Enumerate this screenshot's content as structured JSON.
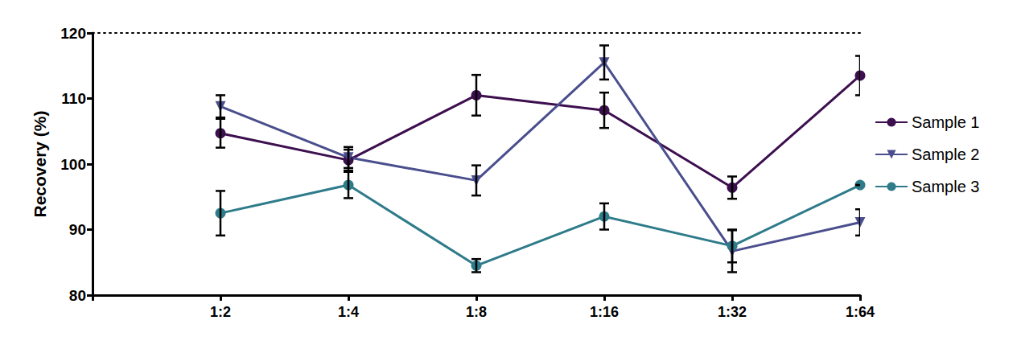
{
  "chart_data": {
    "type": "line",
    "y_label": "Recovery (%)",
    "categories": [
      null,
      "1:2",
      "1:4",
      "1:8",
      "1:16",
      "1:32",
      "1:64"
    ],
    "ylim": [
      80,
      120
    ],
    "yticks": [
      80,
      90,
      100,
      110,
      120
    ],
    "grid": false,
    "legend": "right",
    "series": [
      {
        "name": "Sample 1",
        "color": "#3d0f4f",
        "marker": "circle",
        "values": [
          null,
          104.7,
          100.6,
          110.5,
          108.2,
          96.4,
          113.5
        ],
        "errors": [
          null,
          2.2,
          1.6,
          3.1,
          2.7,
          1.7,
          3.0
        ]
      },
      {
        "name": "Sample 2",
        "color": "#4a4e8d",
        "marker": "triangle-down",
        "values": [
          null,
          108.8,
          101.0,
          97.5,
          115.5,
          86.7,
          91.1
        ],
        "errors": [
          null,
          1.7,
          1.6,
          2.3,
          2.6,
          3.2,
          2.0
        ]
      },
      {
        "name": "Sample 3",
        "color": "#2e7b8a",
        "marker": "circle",
        "values": [
          null,
          92.5,
          96.8,
          84.5,
          92.0,
          87.5,
          96.8
        ],
        "errors": [
          null,
          3.4,
          2.0,
          1.0,
          2.0,
          2.5,
          0
        ]
      }
    ]
  }
}
